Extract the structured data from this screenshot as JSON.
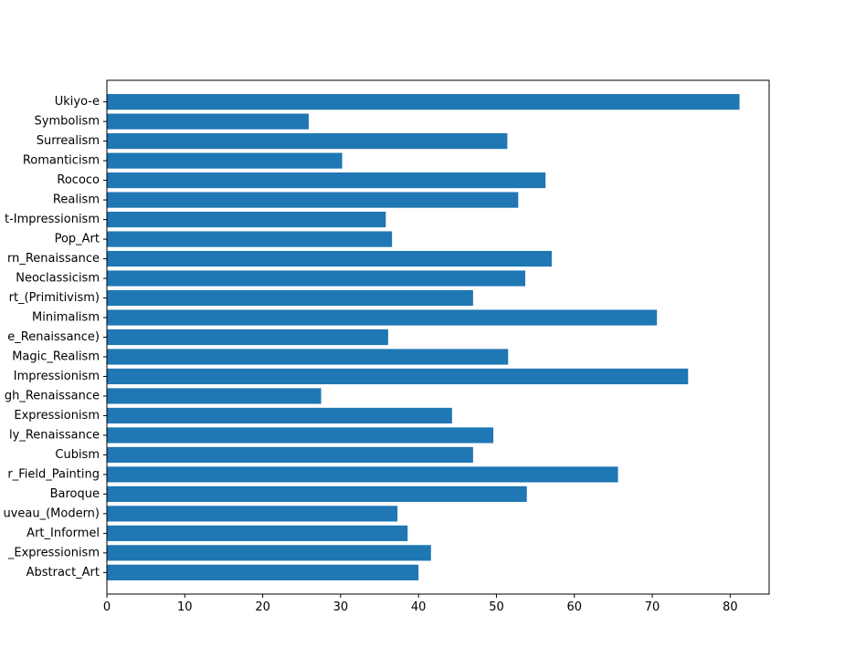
{
  "chart_data": {
    "type": "bar",
    "orientation": "horizontal",
    "title": "",
    "xlabel": "",
    "ylabel": "",
    "xlim": [
      0,
      85
    ],
    "x_ticks": [
      0,
      10,
      20,
      30,
      40,
      50,
      60,
      70,
      80
    ],
    "grid": false,
    "bar_color": "#1f77b4",
    "categories": [
      "Abstract_Art",
      "_Expressionism",
      "Art_Informel",
      "uveau_(Modern)",
      "Baroque",
      "r_Field_Painting",
      "Cubism",
      "ly_Renaissance",
      "Expressionism",
      "gh_Renaissance",
      "Impressionism",
      "Magic_Realism",
      "e_Renaissance)",
      "Minimalism",
      "rt_(Primitivism)",
      "Neoclassicism",
      "rn_Renaissance",
      "Pop_Art",
      "t-Impressionism",
      "Realism",
      "Rococo",
      "Romanticism",
      "Surrealism",
      "Symbolism",
      "Ukiyo-e"
    ],
    "values": [
      40.0,
      41.6,
      38.6,
      37.3,
      53.9,
      65.6,
      47.0,
      49.6,
      44.3,
      27.5,
      74.6,
      51.5,
      36.1,
      70.6,
      47.0,
      53.7,
      57.1,
      36.6,
      35.8,
      52.8,
      56.3,
      30.2,
      51.4,
      25.9,
      81.2
    ]
  }
}
